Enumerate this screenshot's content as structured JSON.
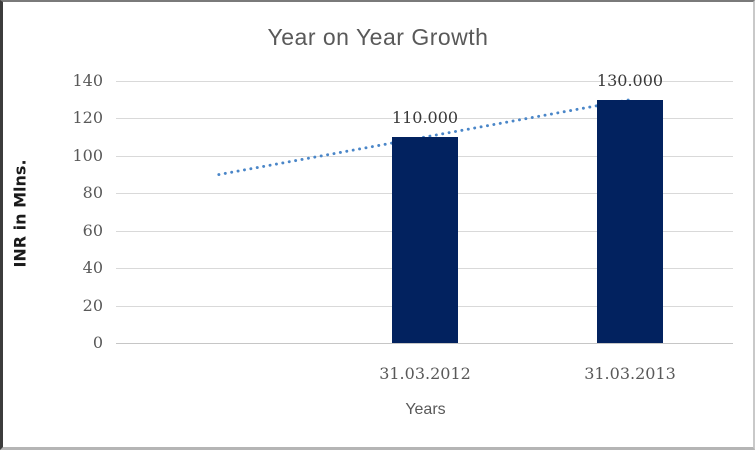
{
  "chart_data": {
    "type": "bar",
    "title": "Year on Year Growth",
    "xlabel": "Years",
    "ylabel": "INR in Mlns.",
    "categories": [
      "",
      "31.03.2012",
      "31.03.2013"
    ],
    "series": [
      {
        "name": "INR in Mlns.",
        "values": [
          null,
          110,
          130
        ]
      }
    ],
    "data_labels": [
      "",
      "110.000",
      "130.000"
    ],
    "ylim": [
      0,
      140
    ],
    "yticks": [
      0,
      20,
      40,
      60,
      80,
      100,
      120,
      140
    ],
    "grid": "horizontal-only",
    "legend_position": "none",
    "trendline": {
      "style": "dotted",
      "points": [
        {
          "category_index": 0,
          "value": 90
        },
        {
          "category_index": 2,
          "value": 130
        }
      ]
    },
    "colors": {
      "bar": "#02225f",
      "trendline": "#4a86c8",
      "gridline": "#d9d9d9",
      "axis_line": "#c6c6c6",
      "title_text": "#595959",
      "tick_text": "#595959",
      "data_label_text": "#3a3a3a",
      "ylabel_text": "#1a1a1a",
      "xlabel_text": "#595959"
    }
  }
}
